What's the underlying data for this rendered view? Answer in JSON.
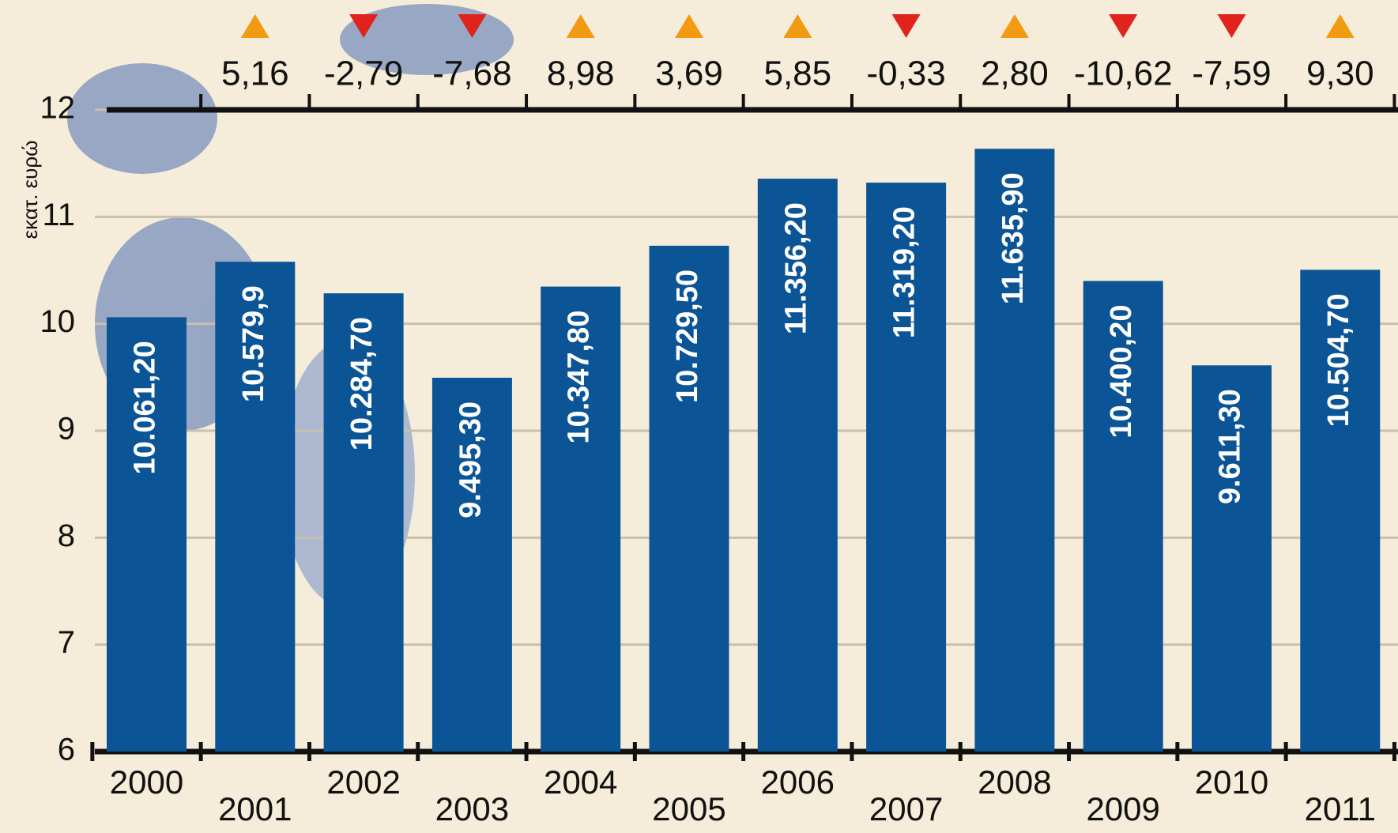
{
  "chart_data": {
    "type": "bar",
    "y_label": "εκατ. ευρώ",
    "categories": [
      "2000",
      "2001",
      "2002",
      "2003",
      "2004",
      "2005",
      "2006",
      "2007",
      "2008",
      "2009",
      "2010",
      "2011"
    ],
    "values": [
      10.0612,
      10.5799,
      10.2847,
      9.4953,
      10.3478,
      10.7295,
      11.3562,
      11.3192,
      11.6359,
      10.4002,
      9.6113,
      10.5047
    ],
    "value_labels": [
      "10.061,20",
      "10.579,9",
      "10.284,70",
      "9.495,30",
      "10.347,80",
      "10.729,50",
      "11.356,20",
      "11.319,20",
      "11.635,90",
      "10.400,20",
      "9.611,30",
      "10.504,70"
    ],
    "color": "#0b5597",
    "ylim": [
      6,
      12
    ],
    "yticks": [
      6,
      7,
      8,
      9,
      10,
      11,
      12
    ],
    "grid": true,
    "changes": {
      "values": [
        5.16,
        -2.79,
        -7.68,
        8.98,
        3.69,
        5.85,
        -0.33,
        2.8,
        -10.62,
        -7.59,
        9.3
      ],
      "value_labels": [
        "5,16",
        "-2,79",
        "-7,68",
        "8,98",
        "3,69",
        "5,85",
        "-0,33",
        "2,80",
        "-10,62",
        "-7,59",
        "9,30"
      ],
      "up_color": "#f29b12",
      "down_color": "#e0231d"
    }
  }
}
